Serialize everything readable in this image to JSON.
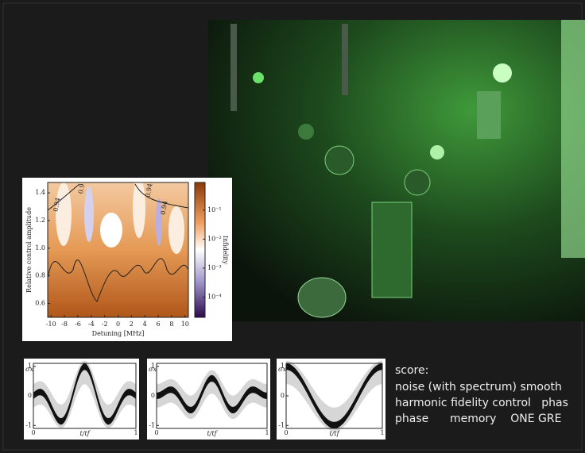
{
  "heatmap": {
    "xlabel": "Detuning [MHz]",
    "ylabel": "Relative control amplitude",
    "colorbar_label": "Infidelity",
    "xlim": [
      -10.5,
      10.5
    ],
    "ylim": [
      0.5,
      1.475
    ],
    "xticks": [
      -10,
      -8,
      -6,
      -4,
      -2,
      0,
      2,
      4,
      6,
      8,
      10
    ],
    "yticks": [
      0.6,
      0.8,
      {
        "value": 1,
        "label": "1.0"
      },
      1.2,
      1.4
    ],
    "clim": [
      2e-05,
      0.9
    ],
    "clog": true,
    "cticks": [
      {
        "value": 0.1,
        "label": "10⁻¹"
      },
      {
        "value": 0.01,
        "label": "10⁻²"
      },
      {
        "value": 0.001,
        "label": "10⁻³"
      },
      {
        "value": 0.0001,
        "label": "10⁻⁴"
      }
    ],
    "contour_labels": [
      "0.94",
      "0.9",
      "0.94",
      "0.94"
    ]
  },
  "plots": [
    {
      "ylabel": "σx",
      "xlabel": "t/tf",
      "ylim": [
        -1.1,
        1.1
      ],
      "yticks": [
        -1,
        0,
        1
      ],
      "xlim": [
        0,
        1
      ],
      "xticks": [
        0,
        1
      ]
    },
    {
      "ylabel": "σx",
      "xlabel": "t/tf",
      "ylim": [
        -1.1,
        1.1
      ],
      "yticks": [
        -1,
        0,
        1
      ],
      "xlim": [
        0,
        1
      ],
      "xticks": [
        0,
        1
      ]
    },
    {
      "ylabel": "σx",
      "xlabel": "t/tf",
      "ylim": [
        -1.1,
        1.1
      ],
      "yticks": [
        -1,
        0,
        1
      ],
      "xlim": [
        0,
        1
      ],
      "xticks": [
        0,
        1
      ]
    }
  ],
  "text": {
    "heading": "score:",
    "lines": [
      "noise (with spectrum) smooth",
      "harmonic fidelity control   phas",
      "phase      memory    ONE GRE"
    ]
  }
}
